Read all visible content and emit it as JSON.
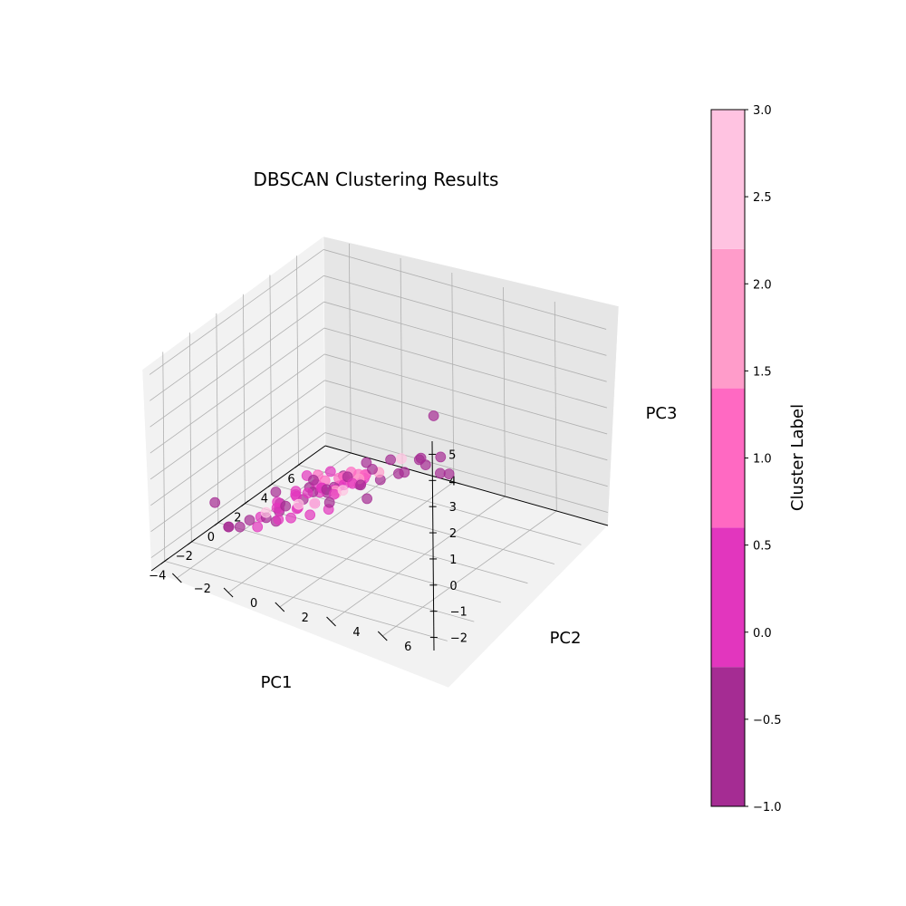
{
  "chart_data": {
    "type": "scatter",
    "title": "DBSCAN Clustering Results",
    "xlabel": "PC1",
    "ylabel": "PC2",
    "zlabel": "PC3",
    "xlim": [
      -5,
      8
    ],
    "ylim": [
      -3,
      8
    ],
    "zlim": [
      -2.5,
      5.5
    ],
    "x_ticks": [
      -4,
      -2,
      0,
      2,
      4,
      6
    ],
    "y_ticks": [
      -2,
      0,
      2,
      4,
      6
    ],
    "z_ticks": [
      -2,
      -1,
      0,
      1,
      2,
      3,
      4,
      5
    ],
    "grid": true,
    "colorbar": {
      "label": "Cluster Label",
      "range": [
        -1.0,
        3.0
      ],
      "ticks": [
        -1.0,
        -0.5,
        0.0,
        0.5,
        1.0,
        1.5,
        2.0,
        2.5,
        3.0
      ],
      "tick_labels": [
        "−1.0",
        "−0.5",
        "0.0",
        "0.5",
        "1.0",
        "1.5",
        "2.0",
        "2.5",
        "3.0"
      ],
      "bands": [
        {
          "from": -1.0,
          "to": -0.2,
          "label": -1,
          "color": "#a52c93"
        },
        {
          "from": -0.2,
          "to": 0.6,
          "label": 0,
          "color": "#e236be"
        },
        {
          "from": 0.6,
          "to": 1.4,
          "label": 1,
          "color": "#ff69c2"
        },
        {
          "from": 1.4,
          "to": 2.2,
          "label": 2,
          "color": "#ff9cca"
        },
        {
          "from": 2.2,
          "to": 3.0,
          "label": 3,
          "color": "#ffc3e1"
        }
      ]
    },
    "points": [
      {
        "x": -2.1,
        "y": 6.8,
        "z": 3.5,
        "c": -1
      },
      {
        "x": 1.6,
        "y": 4.6,
        "z": 3.1,
        "c": -1
      },
      {
        "x": -3.7,
        "y": 1.2,
        "z": 1.2,
        "c": -1
      },
      {
        "x": -4.8,
        "y": -0.6,
        "z": 0.7,
        "c": -1
      },
      {
        "x": -1.2,
        "y": 3.2,
        "z": 1.1,
        "c": -1
      },
      {
        "x": -1.5,
        "y": 3.6,
        "z": 0.8,
        "c": -1
      },
      {
        "x": -2.0,
        "y": 2.4,
        "z": 0.5,
        "c": -1
      },
      {
        "x": -2.6,
        "y": 1.0,
        "z": 0.2,
        "c": -1
      },
      {
        "x": -3.1,
        "y": 0.5,
        "z": -0.2,
        "c": -1
      },
      {
        "x": -4.0,
        "y": -0.5,
        "z": -0.5,
        "c": -1
      },
      {
        "x": -3.4,
        "y": -0.8,
        "z": -0.8,
        "c": -1
      },
      {
        "x": -2.2,
        "y": -1.0,
        "z": -1.3,
        "c": -1
      },
      {
        "x": -0.9,
        "y": -1.3,
        "z": -1.6,
        "c": -1
      },
      {
        "x": 0.8,
        "y": -1.0,
        "z": -1.5,
        "c": -1
      },
      {
        "x": 2.8,
        "y": -0.9,
        "z": -1.6,
        "c": -1
      },
      {
        "x": 4.0,
        "y": -0.2,
        "z": -1.4,
        "c": -1
      },
      {
        "x": 5.8,
        "y": 0.7,
        "z": -1.2,
        "c": -1
      },
      {
        "x": 6.6,
        "y": 1.4,
        "z": -1.3,
        "c": -1
      },
      {
        "x": 5.2,
        "y": 2.2,
        "z": -0.5,
        "c": -1
      },
      {
        "x": 4.4,
        "y": 2.8,
        "z": -0.3,
        "c": -1
      },
      {
        "x": 3.2,
        "y": 2.6,
        "z": -0.2,
        "c": -1
      },
      {
        "x": 2.0,
        "y": 3.0,
        "z": 0.3,
        "c": -1
      },
      {
        "x": 1.2,
        "y": 2.4,
        "z": 0.6,
        "c": -1
      },
      {
        "x": 0.5,
        "y": 1.8,
        "z": 0.4,
        "c": -1
      },
      {
        "x": -0.5,
        "y": 1.5,
        "z": 0.2,
        "c": -1
      },
      {
        "x": 0.2,
        "y": 0.6,
        "z": -0.4,
        "c": -1
      },
      {
        "x": 1.4,
        "y": 0.8,
        "z": -0.6,
        "c": -1
      },
      {
        "x": 2.5,
        "y": 1.2,
        "z": -0.8,
        "c": -1
      },
      {
        "x": 3.5,
        "y": 1.5,
        "z": -0.9,
        "c": -1
      },
      {
        "x": -1.8,
        "y": 0.2,
        "z": -0.9,
        "c": -1
      },
      {
        "x": -0.6,
        "y": -0.3,
        "z": -1.1,
        "c": -1
      },
      {
        "x": 1.0,
        "y": -0.2,
        "z": -1.2,
        "c": -1
      },
      {
        "x": 2.2,
        "y": 0.1,
        "z": -1.3,
        "c": -1
      },
      {
        "x": 0.0,
        "y": 2.8,
        "z": 1.4,
        "c": -1
      },
      {
        "x": -2.8,
        "y": 2.2,
        "z": 1.6,
        "c": -1
      },
      {
        "x": 4.8,
        "y": 3.5,
        "z": -0.6,
        "c": -1
      },
      {
        "x": 7.0,
        "y": 2.0,
        "z": -1.8,
        "c": -1
      },
      {
        "x": -0.5,
        "y": 0.3,
        "z": -0.2,
        "c": 0
      },
      {
        "x": 0.0,
        "y": 0.5,
        "z": -0.4,
        "c": 0
      },
      {
        "x": 0.5,
        "y": 0.8,
        "z": -0.3,
        "c": 0
      },
      {
        "x": 1.0,
        "y": 1.0,
        "z": -0.5,
        "c": 0
      },
      {
        "x": -1.0,
        "y": 0.6,
        "z": -0.6,
        "c": 0
      },
      {
        "x": -1.5,
        "y": 0.9,
        "z": -0.3,
        "c": 0
      },
      {
        "x": -2.0,
        "y": 0.4,
        "z": -0.7,
        "c": 0
      },
      {
        "x": -0.8,
        "y": -0.2,
        "z": -0.9,
        "c": 0
      },
      {
        "x": 0.3,
        "y": -0.1,
        "z": -0.8,
        "c": 0
      },
      {
        "x": 1.3,
        "y": 0.3,
        "z": -0.9,
        "c": 0
      },
      {
        "x": 1.8,
        "y": 0.8,
        "z": -0.7,
        "c": 0
      },
      {
        "x": 2.3,
        "y": 1.5,
        "z": -0.4,
        "c": 0
      },
      {
        "x": 1.5,
        "y": 1.8,
        "z": -0.2,
        "c": 0
      },
      {
        "x": 0.6,
        "y": 1.6,
        "z": 0.0,
        "c": 0
      },
      {
        "x": -0.3,
        "y": 1.2,
        "z": 0.1,
        "c": 0
      },
      {
        "x": -1.2,
        "y": 1.4,
        "z": -0.1,
        "c": 0
      },
      {
        "x": -2.4,
        "y": 1.1,
        "z": -0.3,
        "c": 0
      },
      {
        "x": -2.8,
        "y": 0.0,
        "z": -0.8,
        "c": 0
      },
      {
        "x": -1.6,
        "y": -0.5,
        "z": -1.0,
        "c": 0
      },
      {
        "x": -0.2,
        "y": -0.6,
        "z": -1.2,
        "c": 0
      },
      {
        "x": 1.0,
        "y": -0.5,
        "z": -1.1,
        "c": 0
      },
      {
        "x": 2.0,
        "y": -0.2,
        "z": -1.0,
        "c": 0
      },
      {
        "x": 2.8,
        "y": 0.5,
        "z": -0.9,
        "c": 0
      },
      {
        "x": 3.0,
        "y": 1.2,
        "z": -0.6,
        "c": 0
      },
      {
        "x": 0.1,
        "y": 2.2,
        "z": 0.4,
        "c": 0
      },
      {
        "x": -0.9,
        "y": 2.0,
        "z": 0.3,
        "c": 0
      },
      {
        "x": 0.9,
        "y": 0.0,
        "z": -0.2,
        "c": 0
      },
      {
        "x": -1.3,
        "y": 0.0,
        "z": -0.4,
        "c": 0
      },
      {
        "x": 0.4,
        "y": 1.1,
        "z": -1.0,
        "c": 0
      },
      {
        "x": 1.9,
        "y": 0.4,
        "z": -0.3,
        "c": 0
      },
      {
        "x": -0.6,
        "y": 0.9,
        "z": -0.9,
        "c": 0
      },
      {
        "x": 0.2,
        "y": 0.8,
        "z": 0.3,
        "c": 1
      },
      {
        "x": 0.8,
        "y": 1.3,
        "z": 0.1,
        "c": 1
      },
      {
        "x": 1.4,
        "y": 1.2,
        "z": -0.1,
        "c": 1
      },
      {
        "x": 1.1,
        "y": 0.6,
        "z": -0.3,
        "c": 1
      },
      {
        "x": 1.7,
        "y": 1.6,
        "z": 0.0,
        "c": 1
      },
      {
        "x": 2.1,
        "y": 1.1,
        "z": -0.2,
        "c": 1
      },
      {
        "x": 0.6,
        "y": 1.9,
        "z": 0.2,
        "c": 1
      },
      {
        "x": 1.2,
        "y": 2.1,
        "z": 0.3,
        "c": 1
      },
      {
        "x": 0.4,
        "y": 2.3,
        "z": 0.5,
        "c": 2
      },
      {
        "x": 1.5,
        "y": 2.5,
        "z": 0.4,
        "c": 2
      },
      {
        "x": -0.4,
        "y": 1.8,
        "z": 0.2,
        "c": 2
      },
      {
        "x": 0.2,
        "y": 1.5,
        "z": -0.2,
        "c": 2
      },
      {
        "x": -1.6,
        "y": 1.6,
        "z": 0.1,
        "c": 3
      },
      {
        "x": -2.2,
        "y": 1.3,
        "z": 0.2,
        "c": 3
      },
      {
        "x": -3.3,
        "y": 0.6,
        "z": 0.1,
        "c": 3
      },
      {
        "x": -1.0,
        "y": 2.4,
        "z": 0.6,
        "c": 3
      },
      {
        "x": 2.6,
        "y": 2.8,
        "z": 0.6,
        "c": 3
      }
    ]
  }
}
